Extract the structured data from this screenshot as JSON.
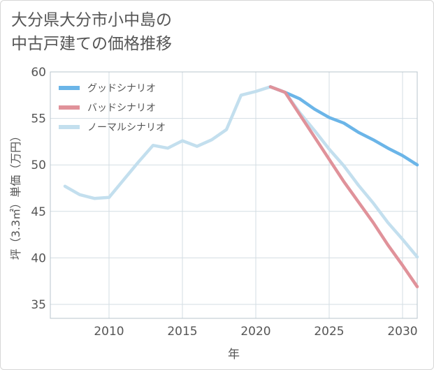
{
  "title": {
    "line1": "大分県大分市小中島の",
    "line2": "中古戸建ての価格推移"
  },
  "chart_data": {
    "type": "line",
    "xlabel": "年",
    "ylabel": "坪（3.3㎡）単価（万円）",
    "xlim": [
      2006,
      2031
    ],
    "ylim": [
      33.5,
      60
    ],
    "x_ticks": [
      2010,
      2015,
      2020,
      2025,
      2030
    ],
    "y_ticks": [
      35,
      40,
      45,
      50,
      55,
      60
    ],
    "grid": true,
    "legend_position": "top-left",
    "series": [
      {
        "name": "グッドシナリオ",
        "color": "#6bb5e8",
        "x": [
          2021,
          2022,
          2023,
          2024,
          2025,
          2026,
          2027,
          2028,
          2029,
          2030,
          2031
        ],
        "values": [
          58.4,
          57.8,
          57.1,
          56.0,
          55.1,
          54.5,
          53.5,
          52.7,
          51.8,
          51.0,
          50.0
        ]
      },
      {
        "name": "バッドシナリオ",
        "color": "#e0929a",
        "x": [
          2021,
          2022,
          2023,
          2024,
          2025,
          2026,
          2027,
          2028,
          2029,
          2030,
          2031
        ],
        "values": [
          58.4,
          57.8,
          55.4,
          53.0,
          50.6,
          48.2,
          46.0,
          43.8,
          41.4,
          39.2,
          36.9
        ]
      },
      {
        "name": "ノーマルシナリオ",
        "color": "#c3dfee",
        "x": [
          2007,
          2008,
          2009,
          2010,
          2011,
          2012,
          2013,
          2014,
          2015,
          2016,
          2017,
          2018,
          2019,
          2020,
          2021,
          2022,
          2023,
          2024,
          2025,
          2026,
          2027,
          2028,
          2029,
          2030,
          2031
        ],
        "values": [
          47.7,
          46.8,
          46.4,
          46.5,
          48.4,
          50.3,
          52.1,
          51.8,
          52.6,
          52.0,
          52.7,
          53.8,
          57.5,
          57.9,
          58.4,
          57.8,
          55.6,
          53.7,
          51.7,
          49.9,
          47.8,
          45.9,
          43.8,
          42.0,
          40.1
        ]
      }
    ]
  }
}
